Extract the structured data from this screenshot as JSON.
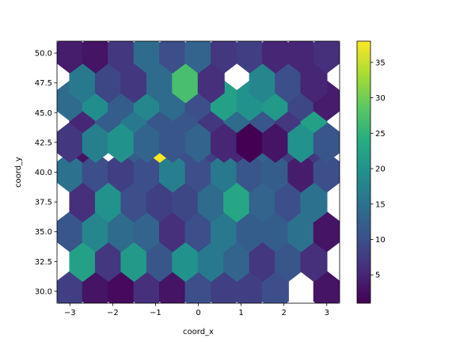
{
  "chart_data": {
    "type": "heatmap",
    "subtype": "hexbin",
    "title": "",
    "xlabel": "coord_x",
    "ylabel": "coord_y",
    "xlim": [
      -3.3,
      3.3
    ],
    "ylim": [
      29.0,
      51.0
    ],
    "xticks": [
      -3,
      -2,
      -1,
      0,
      1,
      2,
      3
    ],
    "xtick_labels": [
      "−3",
      "−2",
      "−1",
      "0",
      "1",
      "2",
      "3"
    ],
    "yticks": [
      30.0,
      32.5,
      35.0,
      37.5,
      40.0,
      42.5,
      45.0,
      47.5,
      50.0
    ],
    "ytick_labels": [
      "30.0",
      "32.5",
      "35.0",
      "37.5",
      "40.0",
      "42.5",
      "45.0",
      "47.5",
      "50.0"
    ],
    "colormap": "viridis",
    "color_range": [
      1,
      38
    ],
    "colorbar_ticks": [
      5,
      10,
      15,
      20,
      25,
      30,
      35
    ],
    "hex_columns_x": [
      -3.0,
      -2.4,
      -1.8,
      -1.2,
      -0.6,
      0.0,
      0.6,
      1.2,
      1.8,
      2.4,
      3.0
    ],
    "hex_rows_y": [
      30.0,
      32.5,
      35.0,
      37.5,
      40.0,
      42.5,
      45.0,
      47.5,
      50.0
    ],
    "bins": [
      {
        "x": -3.0,
        "y": 30.0,
        "count": 8
      },
      {
        "x": -2.4,
        "y": 30.0,
        "count": 3
      },
      {
        "x": -1.8,
        "y": 30.0,
        "count": 2
      },
      {
        "x": -1.2,
        "y": 30.0,
        "count": 6
      },
      {
        "x": -0.6,
        "y": 30.0,
        "count": 3
      },
      {
        "x": 0.0,
        "y": 30.0,
        "count": 10
      },
      {
        "x": 0.6,
        "y": 30.0,
        "count": 8
      },
      {
        "x": 1.2,
        "y": 30.0,
        "count": 8
      },
      {
        "x": 1.8,
        "y": 30.0,
        "count": 10
      },
      {
        "x": 3.0,
        "y": 30.0,
        "count": 3
      },
      {
        "x": -2.7,
        "y": 32.5,
        "count": 22
      },
      {
        "x": -2.1,
        "y": 32.5,
        "count": 7
      },
      {
        "x": -1.5,
        "y": 32.5,
        "count": 21
      },
      {
        "x": -0.9,
        "y": 32.5,
        "count": 11
      },
      {
        "x": -0.3,
        "y": 32.5,
        "count": 20
      },
      {
        "x": 0.3,
        "y": 32.5,
        "count": 16
      },
      {
        "x": 0.9,
        "y": 32.5,
        "count": 13
      },
      {
        "x": 1.5,
        "y": 32.5,
        "count": 7
      },
      {
        "x": 2.1,
        "y": 32.5,
        "count": 11
      },
      {
        "x": 2.7,
        "y": 32.5,
        "count": 6
      },
      {
        "x": -3.0,
        "y": 35.0,
        "count": 11
      },
      {
        "x": -2.4,
        "y": 35.0,
        "count": 18
      },
      {
        "x": -1.8,
        "y": 35.0,
        "count": 14
      },
      {
        "x": -1.2,
        "y": 35.0,
        "count": 13
      },
      {
        "x": -0.6,
        "y": 35.0,
        "count": 6
      },
      {
        "x": 0.0,
        "y": 35.0,
        "count": 10
      },
      {
        "x": 0.6,
        "y": 35.0,
        "count": 16
      },
      {
        "x": 1.2,
        "y": 35.0,
        "count": 12
      },
      {
        "x": 1.8,
        "y": 35.0,
        "count": 12
      },
      {
        "x": 2.4,
        "y": 35.0,
        "count": 15
      },
      {
        "x": 3.0,
        "y": 35.0,
        "count": 3
      },
      {
        "x": -2.7,
        "y": 37.5,
        "count": 6
      },
      {
        "x": -2.1,
        "y": 37.5,
        "count": 20
      },
      {
        "x": -1.5,
        "y": 37.5,
        "count": 10
      },
      {
        "x": -0.9,
        "y": 37.5,
        "count": 8
      },
      {
        "x": -0.3,
        "y": 37.5,
        "count": 9
      },
      {
        "x": 0.3,
        "y": 37.5,
        "count": 14
      },
      {
        "x": 0.9,
        "y": 37.5,
        "count": 23
      },
      {
        "x": 1.5,
        "y": 37.5,
        "count": 13
      },
      {
        "x": 2.1,
        "y": 37.5,
        "count": 10
      },
      {
        "x": 2.7,
        "y": 37.5,
        "count": 15
      },
      {
        "x": -3.0,
        "y": 40.0,
        "count": 15
      },
      {
        "x": -2.4,
        "y": 40.0,
        "count": 10
      },
      {
        "x": -1.8,
        "y": 40.0,
        "count": 8
      },
      {
        "x": -1.2,
        "y": 40.0,
        "count": 10
      },
      {
        "x": -0.6,
        "y": 40.0,
        "count": 17
      },
      {
        "x": 0.0,
        "y": 40.0,
        "count": 10
      },
      {
        "x": 0.6,
        "y": 40.0,
        "count": 16
      },
      {
        "x": 1.2,
        "y": 40.0,
        "count": 11
      },
      {
        "x": 1.8,
        "y": 40.0,
        "count": 12
      },
      {
        "x": 2.4,
        "y": 40.0,
        "count": 4
      },
      {
        "x": 3.0,
        "y": 40.0,
        "count": 10
      },
      {
        "x": -2.7,
        "y": 42.5,
        "count": 3
      },
      {
        "x": -1.5,
        "y": 42.5,
        "count": 12
      },
      {
        "x": -0.9,
        "y": 42.5,
        "count": 38
      },
      {
        "x": -0.3,
        "y": 42.5,
        "count": 10
      },
      {
        "x": 0.3,
        "y": 42.5,
        "count": 8
      },
      {
        "x": 0.9,
        "y": 42.5,
        "count": 5
      },
      {
        "x": 1.5,
        "y": 42.5,
        "count": 13
      },
      {
        "x": 2.1,
        "y": 42.5,
        "count": 8
      },
      {
        "x": 2.7,
        "y": 42.5,
        "count": 7
      },
      {
        "x": -3.0,
        "y": 42.5,
        "count": 7
      },
      {
        "x": -2.4,
        "y": 42.5,
        "count": 17
      },
      {
        "x": -1.8,
        "y": 42.5,
        "count": 20
      },
      {
        "x": -1.2,
        "y": 42.5,
        "count": 13
      },
      {
        "x": -0.6,
        "y": 42.5,
        "count": 11
      },
      {
        "x": 0.0,
        "y": 42.5,
        "count": 13
      },
      {
        "x": 0.6,
        "y": 42.5,
        "count": 5
      },
      {
        "x": 1.2,
        "y": 42.5,
        "count": 1
      },
      {
        "x": 1.8,
        "y": 42.5,
        "count": 3
      },
      {
        "x": 2.4,
        "y": 42.5,
        "count": 20
      },
      {
        "x": 3.0,
        "y": 42.5,
        "count": 11
      },
      {
        "x": -2.7,
        "y": 45.0,
        "count": 5
      },
      {
        "x": -2.1,
        "y": 45.0,
        "count": 12
      },
      {
        "x": -1.5,
        "y": 45.0,
        "count": 16
      },
      {
        "x": -0.9,
        "y": 45.0,
        "count": 11
      },
      {
        "x": -0.3,
        "y": 45.0,
        "count": 11
      },
      {
        "x": 0.3,
        "y": 45.0,
        "count": 7
      },
      {
        "x": 0.9,
        "y": 45.0,
        "count": 14
      },
      {
        "x": 1.5,
        "y": 45.0,
        "count": 11
      },
      {
        "x": 2.1,
        "y": 45.0,
        "count": 7
      },
      {
        "x": 2.7,
        "y": 45.0,
        "count": 22
      },
      {
        "x": -3.0,
        "y": 46.0,
        "count": 14
      },
      {
        "x": -2.4,
        "y": 46.0,
        "count": 19
      },
      {
        "x": -1.8,
        "y": 46.0,
        "count": 12
      },
      {
        "x": -1.2,
        "y": 46.0,
        "count": 18
      },
      {
        "x": -0.6,
        "y": 46.0,
        "count": 14
      },
      {
        "x": 0.0,
        "y": 46.0,
        "count": 10
      },
      {
        "x": 0.6,
        "y": 46.0,
        "count": 22
      },
      {
        "x": 1.2,
        "y": 46.0,
        "count": 20
      },
      {
        "x": 1.8,
        "y": 46.0,
        "count": 21
      },
      {
        "x": 2.4,
        "y": 46.0,
        "count": 9
      },
      {
        "x": 3.0,
        "y": 46.0,
        "count": 4
      },
      {
        "x": -2.7,
        "y": 47.5,
        "count": 16
      },
      {
        "x": -2.1,
        "y": 47.5,
        "count": 9
      },
      {
        "x": -1.5,
        "y": 47.5,
        "count": 7
      },
      {
        "x": -0.9,
        "y": 47.5,
        "count": 14
      },
      {
        "x": -0.3,
        "y": 47.5,
        "count": 27
      },
      {
        "x": 0.3,
        "y": 47.5,
        "count": 6
      },
      {
        "x": 1.5,
        "y": 47.5,
        "count": 18
      },
      {
        "x": 2.1,
        "y": 47.5,
        "count": 10
      },
      {
        "x": 2.7,
        "y": 47.5,
        "count": 5
      },
      {
        "x": -3.0,
        "y": 50.0,
        "count": 4
      },
      {
        "x": -2.4,
        "y": 50.0,
        "count": 3
      },
      {
        "x": -1.8,
        "y": 50.0,
        "count": 7
      },
      {
        "x": -1.2,
        "y": 50.0,
        "count": 14
      },
      {
        "x": -0.6,
        "y": 50.0,
        "count": 10
      },
      {
        "x": 0.0,
        "y": 50.0,
        "count": 13
      },
      {
        "x": 0.6,
        "y": 50.0,
        "count": 7
      },
      {
        "x": 1.2,
        "y": 50.0,
        "count": 8
      },
      {
        "x": 1.8,
        "y": 50.0,
        "count": 5
      },
      {
        "x": 2.4,
        "y": 50.0,
        "count": 5
      },
      {
        "x": 3.0,
        "y": 50.0,
        "count": 6
      }
    ]
  }
}
